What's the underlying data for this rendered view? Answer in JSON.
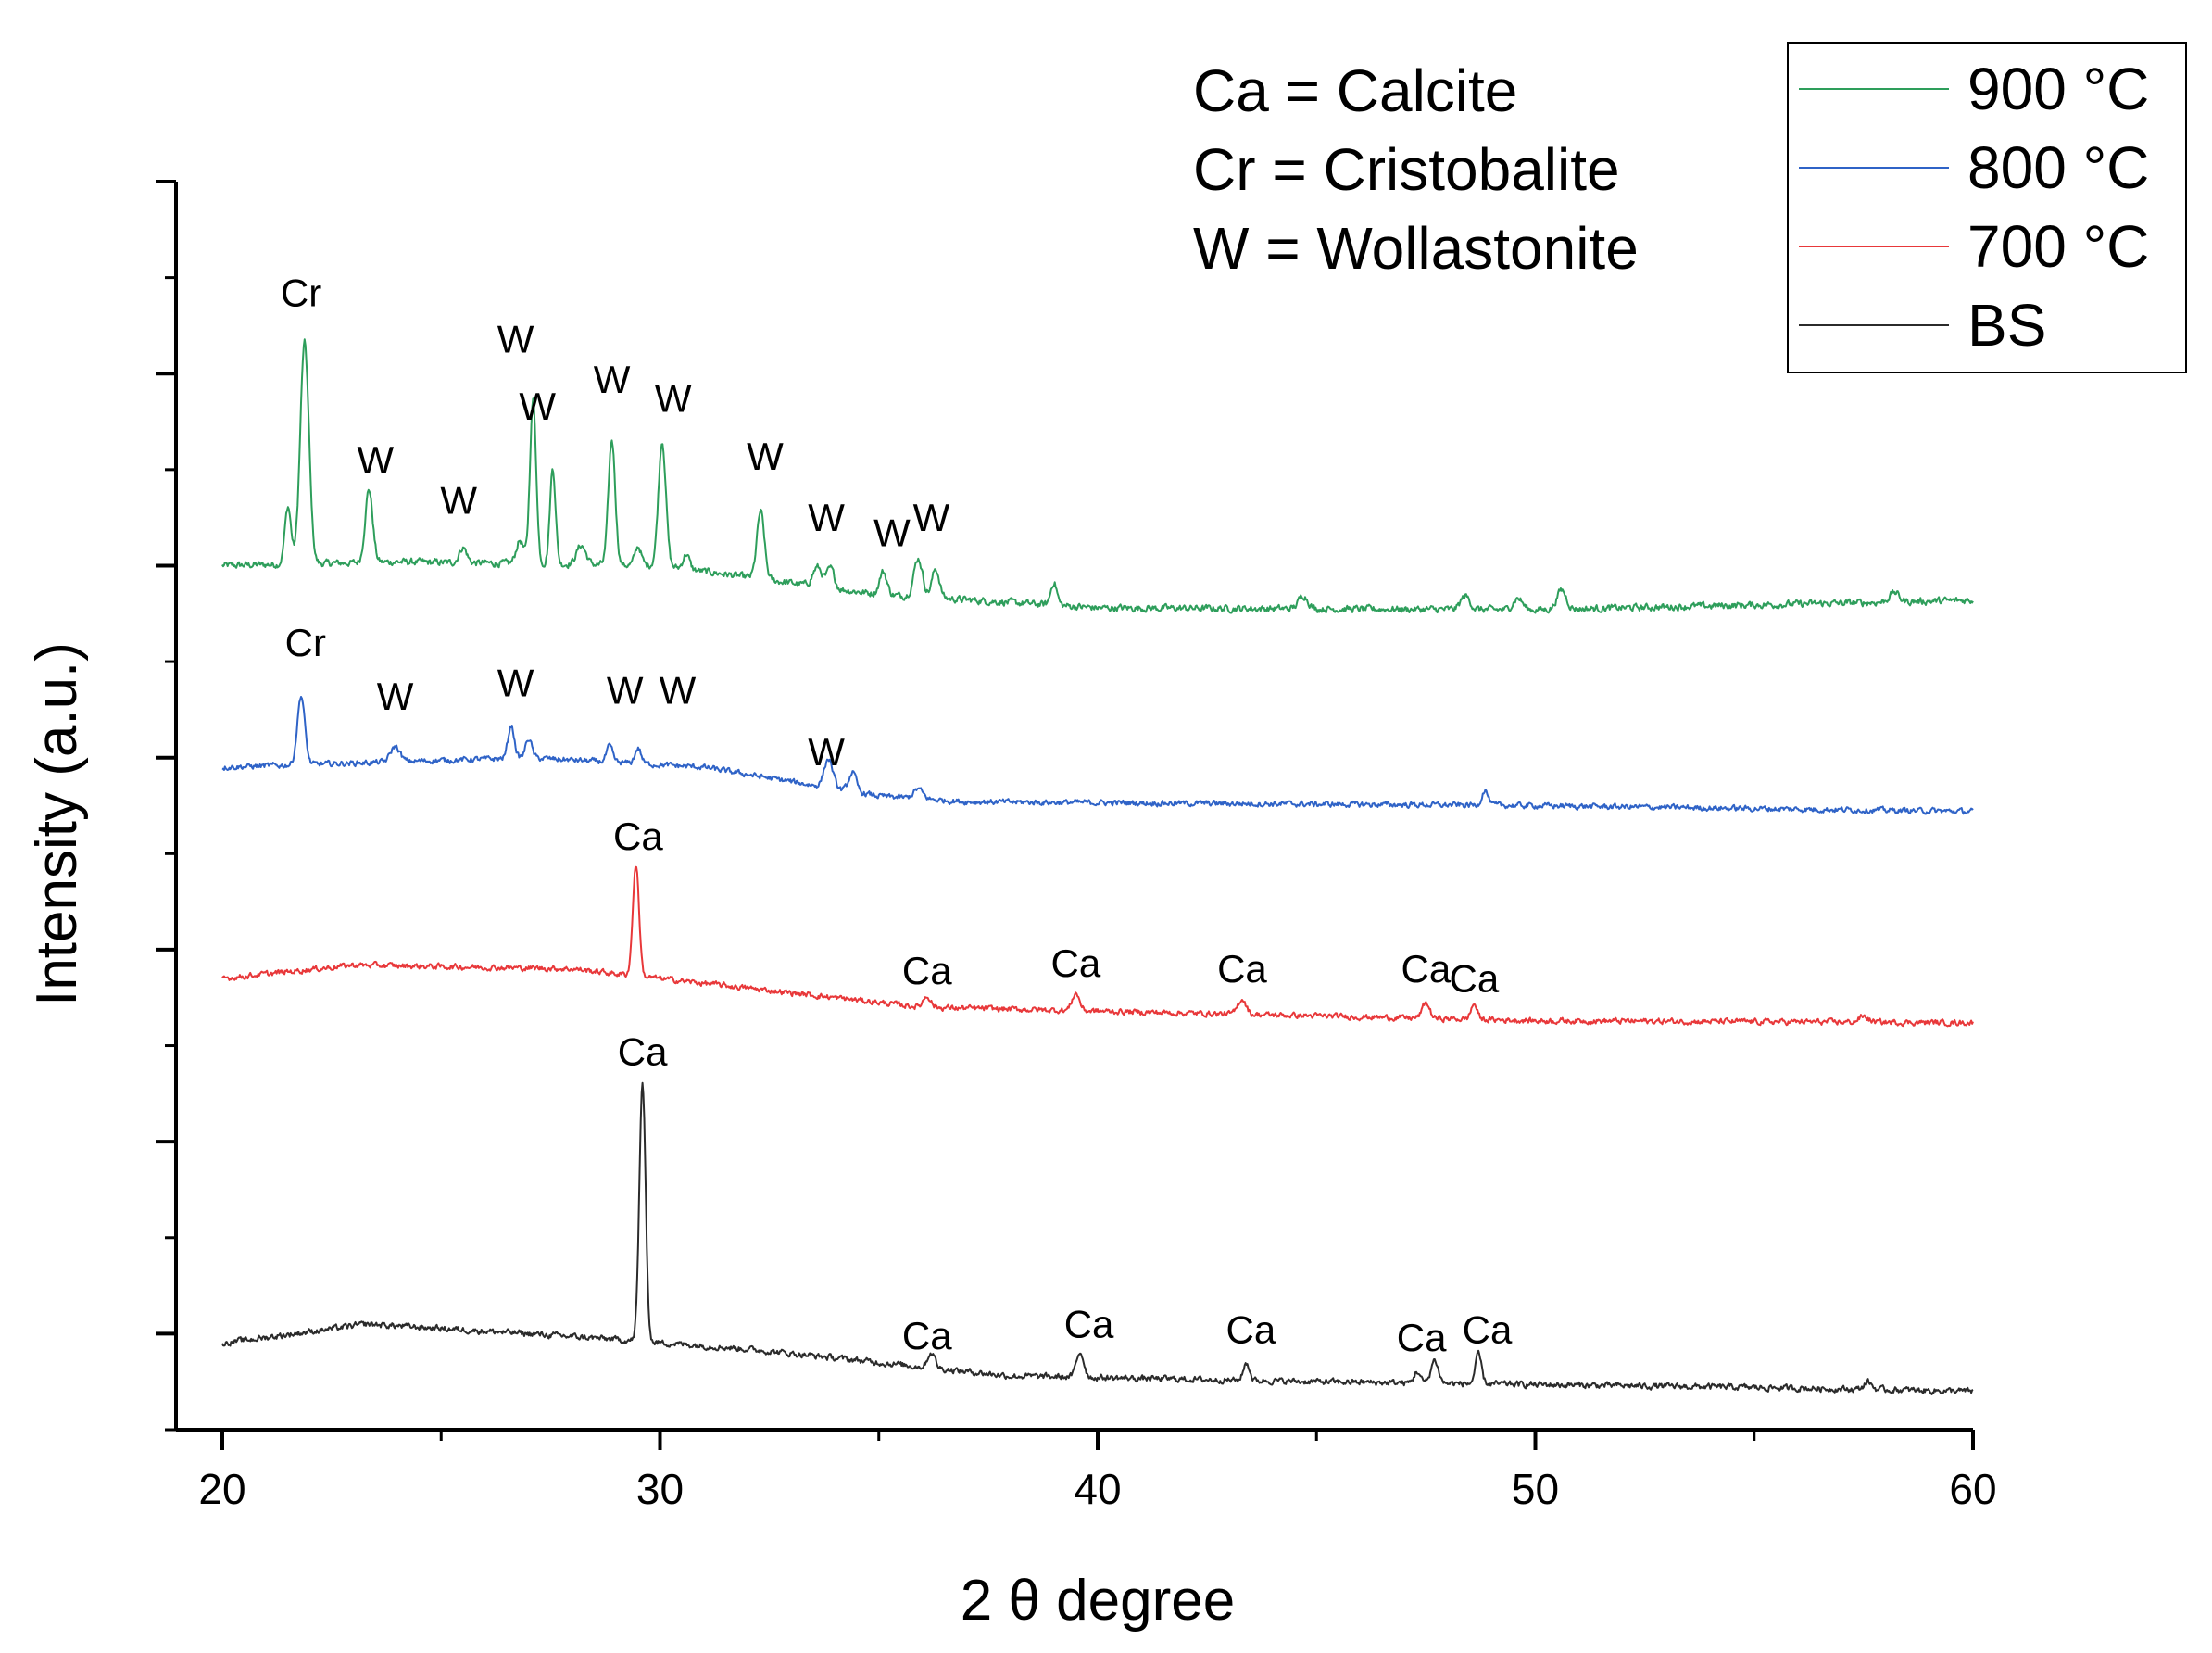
{
  "chart_data": {
    "type": "line",
    "title": "",
    "xlabel": "2 θ degree",
    "ylabel": "Intensity (a.u.)",
    "xlim": [
      20,
      60
    ],
    "ylim": [
      0,
      6.5
    ],
    "x_ticks": [
      20,
      30,
      40,
      50,
      60
    ],
    "x_tick_labels": [
      "20",
      "30",
      "40",
      "50",
      "60"
    ],
    "y_ticks": [
      0.5,
      1.5,
      2.5,
      3.5,
      4.5,
      5.5,
      6.5
    ],
    "y_minor_ticks": [
      0,
      1,
      2,
      3,
      4,
      5,
      6
    ],
    "y_tick_labels_shown": false,
    "abbreviations": [
      "Ca = Calcite",
      "Cr = Cristobalite",
      "W = Wollastonite"
    ],
    "legend": {
      "placement": "top-right"
    },
    "series": [
      {
        "name": "900 °C",
        "color": "#2e9e5b",
        "baseline": [
          [
            20,
            4.5
          ],
          [
            24,
            4.52
          ],
          [
            30,
            4.5
          ],
          [
            35,
            4.35
          ],
          [
            40,
            4.28
          ],
          [
            50,
            4.27
          ],
          [
            60,
            4.32
          ]
        ],
        "peaks": [
          [
            21.5,
            0.3,
            0.1
          ],
          [
            21.88,
            1.15,
            0.14
          ],
          [
            23.35,
            0.38,
            0.12
          ],
          [
            25.5,
            0.08,
            0.12
          ],
          [
            26.8,
            0.12,
            0.12
          ],
          [
            27.1,
            0.85,
            0.1
          ],
          [
            27.55,
            0.5,
            0.09
          ],
          [
            28.2,
            0.1,
            0.15
          ],
          [
            28.9,
            0.65,
            0.11
          ],
          [
            29.5,
            0.1,
            0.1
          ],
          [
            30.05,
            0.65,
            0.12
          ],
          [
            30.6,
            0.08,
            0.1
          ],
          [
            32.3,
            0.35,
            0.12
          ],
          [
            33.6,
            0.1,
            0.15
          ],
          [
            33.9,
            0.1,
            0.12
          ],
          [
            35.1,
            0.12,
            0.12
          ],
          [
            35.9,
            0.2,
            0.14
          ],
          [
            36.3,
            0.15,
            0.12
          ],
          [
            39.0,
            0.12,
            0.1
          ],
          [
            44.7,
            0.07,
            0.15
          ],
          [
            48.4,
            0.07,
            0.15
          ],
          [
            49.6,
            0.06,
            0.15
          ],
          [
            50.6,
            0.1,
            0.15
          ],
          [
            58.2,
            0.05,
            0.15
          ]
        ],
        "noise": 0.015,
        "labels": [
          {
            "text": "Cr",
            "x": 21.8,
            "y": 5.85
          },
          {
            "text": "W",
            "x": 23.5,
            "y": 4.98
          },
          {
            "text": "W",
            "x": 25.4,
            "y": 4.77
          },
          {
            "text": "W",
            "x": 26.7,
            "y": 5.61
          },
          {
            "text": "W",
            "x": 27.2,
            "y": 5.26
          },
          {
            "text": "W",
            "x": 28.9,
            "y": 5.4
          },
          {
            "text": "W",
            "x": 30.3,
            "y": 5.3
          },
          {
            "text": "W",
            "x": 32.4,
            "y": 5.0
          },
          {
            "text": "W",
            "x": 33.8,
            "y": 4.68
          },
          {
            "text": "W",
            "x": 35.3,
            "y": 4.6
          },
          {
            "text": "W",
            "x": 36.2,
            "y": 4.68
          }
        ]
      },
      {
        "name": "800 °C",
        "color": "#2f63c7",
        "baseline": [
          [
            20,
            3.45
          ],
          [
            27,
            3.5
          ],
          [
            31,
            3.45
          ],
          [
            35,
            3.3
          ],
          [
            37,
            3.27
          ],
          [
            50,
            3.25
          ],
          [
            60,
            3.22
          ]
        ],
        "peaks": [
          [
            21.8,
            0.36,
            0.12
          ],
          [
            23.95,
            0.08,
            0.15
          ],
          [
            26.6,
            0.17,
            0.1
          ],
          [
            27.0,
            0.1,
            0.1
          ],
          [
            28.85,
            0.08,
            0.1
          ],
          [
            29.5,
            0.08,
            0.1
          ],
          [
            33.85,
            0.15,
            0.14
          ],
          [
            34.4,
            0.1,
            0.12
          ],
          [
            35.9,
            0.05,
            0.15
          ],
          [
            48.85,
            0.08,
            0.1
          ]
        ],
        "noise": 0.012,
        "labels": [
          {
            "text": "Cr",
            "x": 21.9,
            "y": 4.03
          },
          {
            "text": "W",
            "x": 23.95,
            "y": 3.75
          },
          {
            "text": "W",
            "x": 26.7,
            "y": 3.82
          },
          {
            "text": "W",
            "x": 29.2,
            "y": 3.78
          },
          {
            "text": "W",
            "x": 30.4,
            "y": 3.78
          },
          {
            "text": "W",
            "x": 33.8,
            "y": 3.46
          }
        ]
      },
      {
        "name": "700 °C",
        "color": "#e8383a",
        "baseline": [
          [
            20,
            2.35
          ],
          [
            23,
            2.42
          ],
          [
            28,
            2.4
          ],
          [
            32,
            2.3
          ],
          [
            36,
            2.2
          ],
          [
            42,
            2.17
          ],
          [
            50,
            2.13
          ],
          [
            60,
            2.12
          ]
        ],
        "peaks": [
          [
            29.45,
            0.58,
            0.1
          ],
          [
            36.1,
            0.06,
            0.12
          ],
          [
            39.5,
            0.09,
            0.12
          ],
          [
            43.3,
            0.08,
            0.13
          ],
          [
            47.5,
            0.08,
            0.12
          ],
          [
            48.6,
            0.08,
            0.1
          ],
          [
            57.5,
            0.03,
            0.15
          ]
        ],
        "noise": 0.012,
        "labels": [
          {
            "text": "Ca",
            "x": 29.5,
            "y": 3.02
          },
          {
            "text": "Ca",
            "x": 36.1,
            "y": 2.32
          },
          {
            "text": "Ca",
            "x": 39.5,
            "y": 2.36
          },
          {
            "text": "Ca",
            "x": 43.3,
            "y": 2.33
          },
          {
            "text": "Ca",
            "x": 47.5,
            "y": 2.33
          },
          {
            "text": "Ca",
            "x": 48.6,
            "y": 2.28
          }
        ]
      },
      {
        "name": "BS",
        "color": "#2b2b2b",
        "baseline": [
          [
            20,
            0.45
          ],
          [
            23.3,
            0.55
          ],
          [
            27,
            0.5
          ],
          [
            29,
            0.47
          ],
          [
            32,
            0.42
          ],
          [
            35,
            0.35
          ],
          [
            38,
            0.28
          ],
          [
            45,
            0.25
          ],
          [
            55,
            0.22
          ],
          [
            60,
            0.2
          ]
        ],
        "peaks": [
          [
            29.6,
            1.35,
            0.1
          ],
          [
            36.2,
            0.08,
            0.12
          ],
          [
            39.6,
            0.13,
            0.12
          ],
          [
            43.4,
            0.09,
            0.1
          ],
          [
            47.3,
            0.06,
            0.1
          ],
          [
            47.7,
            0.12,
            0.12
          ],
          [
            48.7,
            0.15,
            0.1
          ],
          [
            57.6,
            0.04,
            0.12
          ]
        ],
        "noise": 0.013,
        "labels": [
          {
            "text": "Ca",
            "x": 29.6,
            "y": 1.9
          },
          {
            "text": "Ca",
            "x": 36.1,
            "y": 0.42
          },
          {
            "text": "Ca",
            "x": 39.8,
            "y": 0.48
          },
          {
            "text": "Ca",
            "x": 43.5,
            "y": 0.45
          },
          {
            "text": "Ca",
            "x": 47.4,
            "y": 0.41
          },
          {
            "text": "Ca",
            "x": 48.9,
            "y": 0.45
          }
        ]
      }
    ]
  }
}
